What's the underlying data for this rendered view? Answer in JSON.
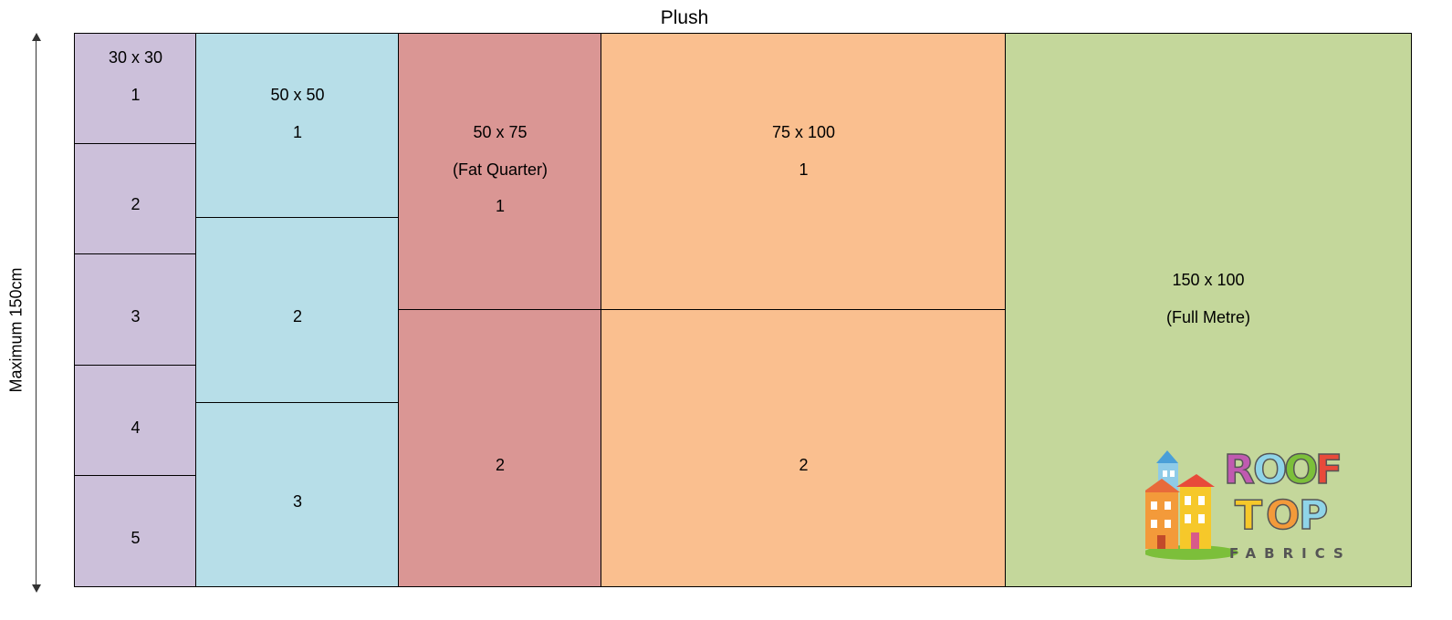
{
  "title": "Plush",
  "axis_label": "Maximum 150cm",
  "panels": {
    "p30": {
      "size": "30 x 30",
      "n1": "1",
      "n2": "2",
      "n3": "3",
      "n4": "4",
      "n5": "5"
    },
    "p50": {
      "size": "50 x 50",
      "n1": "1",
      "n2": "2",
      "n3": "3"
    },
    "p5075": {
      "size": "50 x 75",
      "subtitle": "(Fat Quarter)",
      "n1": "1",
      "n2": "2"
    },
    "p75100": {
      "size": "75 x 100",
      "n1": "1",
      "n2": "2"
    },
    "p150100": {
      "size": "150 x 100",
      "subtitle": "(Full Metre)"
    }
  },
  "logo": {
    "line1": "ROOF",
    "line2": "TOP",
    "line3": "FABRICS"
  },
  "colors": {
    "p30": "#ccc0da",
    "p50": "#b7dee8",
    "p5075": "#da9694",
    "p75100": "#fabf8f",
    "p150100": "#c4d79b"
  }
}
